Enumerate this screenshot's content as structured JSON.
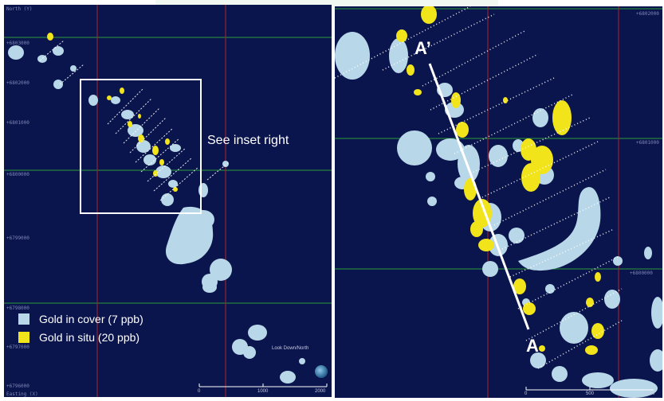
{
  "legend": {
    "items": [
      {
        "label": "Gold in cover (7 ppb)",
        "color": "#b8d7e8"
      },
      {
        "label": "Gold in situ (20 ppb)",
        "color": "#f2e41b"
      }
    ]
  },
  "left_panel": {
    "inset_label": "See inset right",
    "north_axis_label": "North (Y)",
    "easting_axis_label": "Easting (X)",
    "y_coords": [
      "+6803000",
      "+6802000",
      "+6801000",
      "+6800000",
      "+6799000",
      "+6798000",
      "+6797000",
      "+6796000"
    ],
    "scale_labels": [
      "0",
      "1000",
      "2000"
    ],
    "view_button": "Look Down/North"
  },
  "right_panel": {
    "section_top": "A’",
    "section_bottom": "A",
    "y_coords": [
      "+6802000",
      "+6801000",
      "+6800000"
    ],
    "scale_labels": [
      "0",
      "500",
      "1000"
    ]
  },
  "colors": {
    "background": "#0b154d",
    "grid_green": "#2b9b3c",
    "grid_red": "#b12127",
    "cover": "#b8d7e8",
    "situ": "#f2e41b",
    "inset_box": "#ffffff"
  }
}
